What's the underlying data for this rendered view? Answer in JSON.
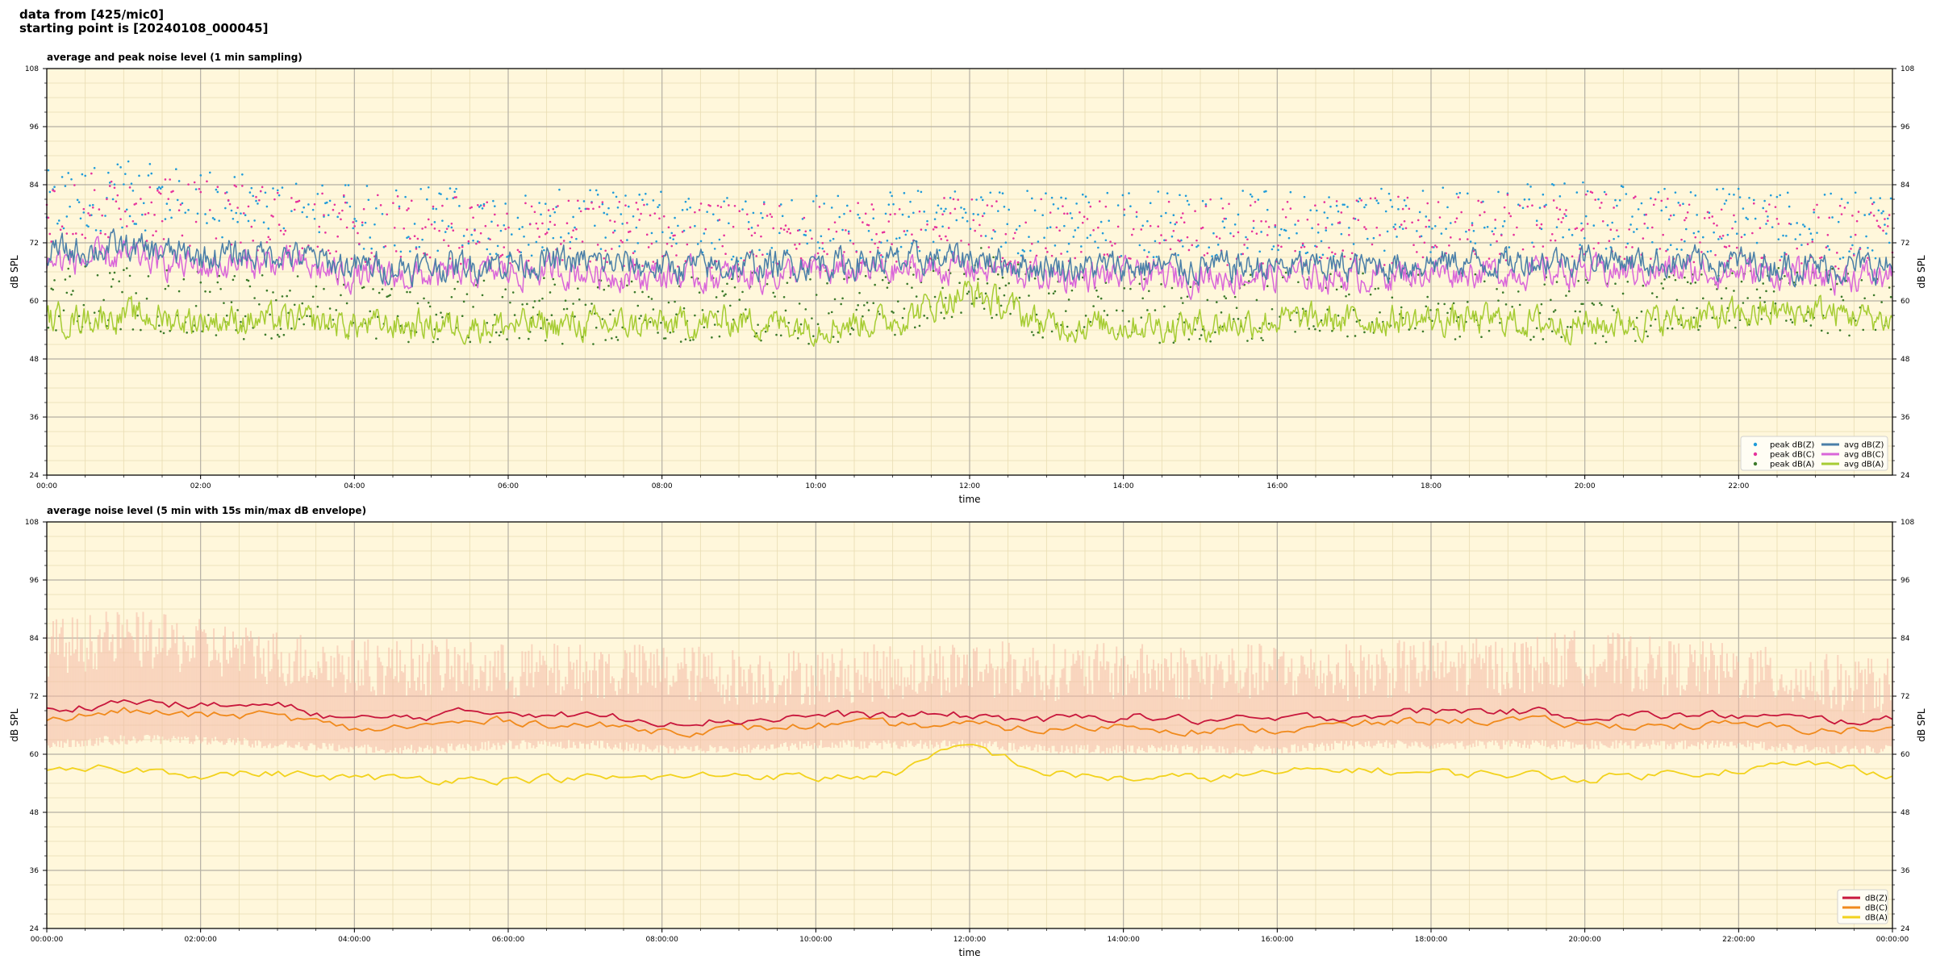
{
  "header": {
    "line1": "data from [425/mic0]",
    "line2": "starting point is [20240108_000045]"
  },
  "chart_data": [
    {
      "type": "line",
      "title": "average and peak noise level (1 min sampling)",
      "xlabel": "time",
      "ylabel": "dB SPL",
      "ylim": [
        24,
        108
      ],
      "yticks": [
        "24",
        "36",
        "48",
        "60",
        "72",
        "84",
        "96",
        "108"
      ],
      "xlim_hours": [
        0,
        24
      ],
      "xticks": [
        "00:00",
        "02:00",
        "04:00",
        "06:00",
        "08:00",
        "10:00",
        "12:00",
        "14:00",
        "16:00",
        "18:00",
        "20:00",
        "22:00"
      ],
      "grid": true,
      "legend_position": "bottom-right",
      "legend": [
        {
          "label": "peak dB(Z)",
          "kind": "marker",
          "color": "#1f9bd9"
        },
        {
          "label": "peak dB(C)",
          "kind": "marker",
          "color": "#e6329c"
        },
        {
          "label": "peak dB(A)",
          "kind": "marker",
          "color": "#3c7a2a"
        },
        {
          "label": "avg dB(Z)",
          "kind": "line",
          "color": "#4a7fa8"
        },
        {
          "label": "avg dB(C)",
          "kind": "line",
          "color": "#d966d9"
        },
        {
          "label": "avg dB(A)",
          "kind": "line",
          "color": "#a6cc33"
        }
      ],
      "series_hourly": [
        {
          "name": "avg dB(Z)",
          "values": [
            70,
            71,
            69,
            70,
            67,
            67,
            68,
            68,
            67,
            67,
            68,
            68,
            69,
            67,
            67,
            67,
            67,
            67,
            68,
            68,
            69,
            68,
            68,
            67,
            67
          ]
        },
        {
          "name": "avg dB(C)",
          "values": [
            68,
            69,
            67,
            68,
            65,
            65,
            66,
            66,
            65,
            65,
            66,
            66,
            67,
            65,
            65,
            65,
            65,
            65,
            66,
            66,
            66,
            66,
            66,
            65,
            65
          ]
        },
        {
          "name": "avg dB(A)",
          "values": [
            56,
            57,
            56,
            56,
            55,
            55,
            55,
            55,
            55,
            56,
            55,
            56,
            62,
            55,
            55,
            55,
            56,
            56,
            56,
            56,
            55,
            56,
            57,
            58,
            56
          ]
        },
        {
          "name": "peak dB(Z)",
          "values": [
            80,
            82,
            80,
            79,
            77,
            77,
            76,
            76,
            76,
            75,
            75,
            76,
            77,
            76,
            76,
            76,
            76,
            76,
            77,
            77,
            78,
            77,
            77,
            75,
            76
          ]
        },
        {
          "name": "peak dB(C)",
          "values": [
            79,
            80,
            78,
            77,
            75,
            75,
            74,
            74,
            74,
            73,
            73,
            74,
            75,
            74,
            74,
            74,
            74,
            74,
            75,
            75,
            76,
            75,
            75,
            73,
            74
          ]
        },
        {
          "name": "peak dB(A)",
          "values": [
            60,
            61,
            59,
            59,
            58,
            58,
            58,
            58,
            58,
            59,
            58,
            59,
            65,
            58,
            58,
            58,
            59,
            59,
            59,
            59,
            58,
            59,
            60,
            60,
            59
          ]
        }
      ]
    },
    {
      "type": "line",
      "title": "average noise level (5 min with 15s min/max dB envelope)",
      "xlabel": "time",
      "ylabel": "dB SPL",
      "ylim": [
        24,
        108
      ],
      "yticks": [
        "24",
        "36",
        "48",
        "60",
        "72",
        "84",
        "96",
        "108"
      ],
      "xlim_hours": [
        0,
        24
      ],
      "xticks": [
        "00:00:00",
        "02:00:00",
        "04:00:00",
        "06:00:00",
        "08:00:00",
        "10:00:00",
        "12:00:00",
        "14:00:00",
        "16:00:00",
        "18:00:00",
        "20:00:00",
        "22:00:00",
        "00:00:00"
      ],
      "grid": true,
      "legend_position": "bottom-right",
      "legend": [
        {
          "label": "dB(Z)",
          "kind": "line",
          "color": "#c8173c"
        },
        {
          "label": "dB(C)",
          "kind": "line",
          "color": "#f08a1c"
        },
        {
          "label": "dB(A)",
          "kind": "line",
          "color": "#f2d21c"
        }
      ],
      "envelope_color": "#f4b9a6",
      "series_hourly": [
        {
          "name": "dB(Z)",
          "values": [
            69,
            71,
            70,
            70,
            67,
            68,
            69,
            68,
            67,
            67,
            68,
            68,
            68,
            67,
            68,
            67,
            67,
            68,
            69,
            69,
            68,
            68,
            68,
            67,
            67
          ]
        },
        {
          "name": "dB(C)",
          "values": [
            67,
            69,
            68,
            68,
            65,
            66,
            67,
            66,
            65,
            65,
            66,
            66,
            66,
            65,
            66,
            65,
            65,
            66,
            67,
            67,
            66,
            66,
            66,
            65,
            65
          ]
        },
        {
          "name": "dB(A)",
          "values": [
            56,
            57,
            56,
            56,
            55,
            55,
            55,
            55,
            55,
            56,
            55,
            56,
            62,
            56,
            55,
            55,
            56,
            57,
            56,
            56,
            55,
            56,
            57,
            58,
            56
          ]
        },
        {
          "name": "envelope max",
          "values": [
            82,
            84,
            82,
            80,
            78,
            78,
            77,
            77,
            77,
            76,
            76,
            77,
            78,
            77,
            77,
            77,
            77,
            77,
            78,
            78,
            80,
            78,
            77,
            75,
            74
          ]
        },
        {
          "name": "envelope min",
          "values": [
            63,
            64,
            64,
            63,
            62,
            62,
            63,
            63,
            62,
            62,
            63,
            63,
            63,
            62,
            62,
            62,
            62,
            63,
            63,
            63,
            63,
            63,
            63,
            62,
            62
          ]
        }
      ]
    }
  ]
}
